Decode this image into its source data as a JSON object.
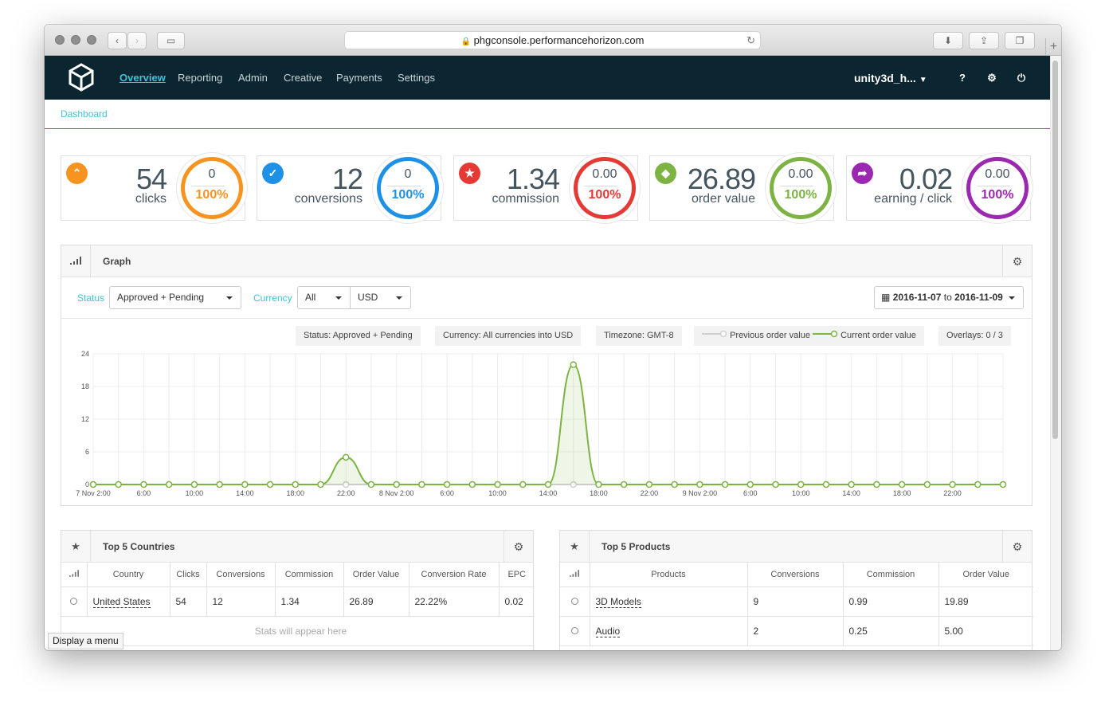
{
  "browser": {
    "url": "phgconsole.performancehorizon.com"
  },
  "nav": {
    "items": [
      "Overview",
      "Reporting",
      "Admin",
      "Creative",
      "Payments",
      "Settings"
    ],
    "user": "unity3d_h..."
  },
  "breadcrumb": "Dashboard",
  "cards": [
    {
      "value": "54",
      "label": "clicks",
      "ring_top": "0",
      "ring_pct": "100%",
      "color": "#f7931e",
      "icon": "chevron-up-icon"
    },
    {
      "value": "12",
      "label": "conversions",
      "ring_top": "0",
      "ring_pct": "100%",
      "color": "#1e90e6",
      "icon": "check-icon"
    },
    {
      "value": "1.34",
      "label": "commission",
      "ring_top": "0.00",
      "ring_pct": "100%",
      "color": "#e53935",
      "icon": "star-icon"
    },
    {
      "value": "26.89",
      "label": "order value",
      "ring_top": "0.00",
      "ring_pct": "100%",
      "color": "#7cb342",
      "icon": "tag-icon"
    },
    {
      "value": "0.02",
      "label": "earning / click",
      "ring_top": "0.00",
      "ring_pct": "100%",
      "color": "#9c27b0",
      "icon": "share-icon"
    }
  ],
  "graph": {
    "title": "Graph",
    "status_label": "Status",
    "status_value": "Approved + Pending",
    "currency_label": "Currency",
    "currency_value": "All",
    "currency_unit": "USD",
    "date_from": "2016-11-07",
    "date_to_word": "to",
    "date_to": "2016-11-09",
    "tags": {
      "status": "Status: Approved + Pending",
      "currency": "Currency: All currencies into USD",
      "timezone": "Timezone: GMT-8",
      "prev": "Previous order value",
      "curr": "Current order value",
      "overlays": "Overlays: 0 / 3"
    }
  },
  "chart_data": {
    "type": "line",
    "yticks": [
      "24",
      "18",
      "12",
      "6",
      "0"
    ],
    "ylim": [
      0,
      24
    ],
    "xlabels": [
      "7 Nov 2:00",
      "6:00",
      "10:00",
      "14:00",
      "18:00",
      "22:00",
      "8 Nov 2:00",
      "6:00",
      "10:00",
      "14:00",
      "18:00",
      "22:00",
      "9 Nov 2:00",
      "6:00",
      "10:00",
      "14:00",
      "18:00",
      "22:00"
    ],
    "series": [
      {
        "name": "Previous order value",
        "color": "#cfcfcf",
        "values": [
          0,
          0,
          0,
          0,
          0,
          0,
          0,
          0,
          0,
          0,
          0,
          0,
          0,
          0,
          0,
          0,
          0,
          0,
          0,
          0,
          0,
          0,
          0,
          0,
          0,
          0,
          0,
          0,
          0,
          0,
          0,
          0,
          0,
          0,
          0,
          0,
          0
        ]
      },
      {
        "name": "Current order value",
        "color": "#7cb342",
        "values": [
          0,
          0,
          0,
          0,
          0,
          0,
          0,
          0,
          0,
          0,
          5,
          0,
          0,
          0,
          0,
          0,
          0,
          0,
          0,
          22,
          0,
          0,
          0,
          0,
          0,
          0,
          0,
          0,
          0,
          0,
          0,
          0,
          0,
          0,
          0,
          0,
          0
        ]
      }
    ]
  },
  "countries": {
    "title": "Top 5 Countries",
    "headers": [
      "Country",
      "Clicks",
      "Conversions",
      "Commission",
      "Order Value",
      "Conversion Rate",
      "EPC"
    ],
    "rows": [
      [
        "United States",
        "54",
        "12",
        "1.34",
        "26.89",
        "22.22%",
        "0.02"
      ]
    ],
    "empty": "Stats will appear here"
  },
  "products": {
    "title": "Top 5 Products",
    "headers": [
      "Products",
      "Conversions",
      "Commission",
      "Order Value"
    ],
    "rows": [
      [
        "3D Models",
        "9",
        "0.99",
        "19.89"
      ],
      [
        "Audio",
        "2",
        "0.25",
        "5.00"
      ]
    ]
  },
  "tooltip": "Display a menu"
}
